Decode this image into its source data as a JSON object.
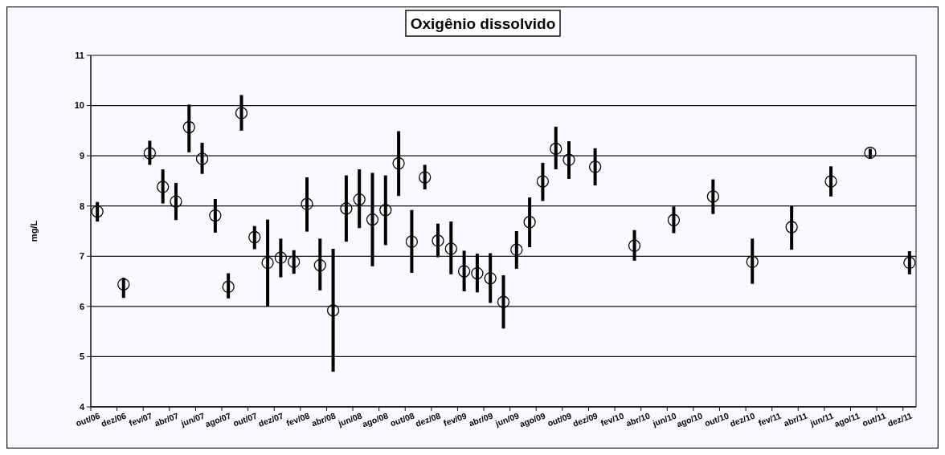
{
  "chart_data": {
    "type": "scatter",
    "title": "Oxigênio dissolvido",
    "ylabel": "mg/L",
    "categories": [
      "out/06",
      null,
      "dez/06",
      null,
      "fev/07",
      null,
      "abr/07",
      null,
      "jun/07",
      null,
      "ago/07",
      null,
      "out/07",
      null,
      "dez/07",
      null,
      "fev/08",
      null,
      "abr/08",
      null,
      "jun/08",
      null,
      "ago/08",
      null,
      "out/08",
      null,
      "dez/08",
      null,
      "fev/09",
      null,
      "abr/09",
      null,
      "jun/09",
      null,
      "ago/09",
      null,
      "out/09",
      null,
      "dez/09",
      null,
      "fev/10",
      null,
      "abr/10",
      null,
      "jun/10",
      null,
      "ago/10",
      null,
      "out/10",
      null,
      "dez/10",
      null,
      "fev/11",
      null,
      "abr/11",
      null,
      "jun/11",
      null,
      "ago/11",
      null,
      "out/11",
      null,
      "dez/11"
    ],
    "series": [
      {
        "color": "#000000",
        "values": [
          7.89,
          null,
          6.44,
          null,
          9.05,
          8.38,
          8.09,
          9.57,
          8.94,
          7.81,
          6.39,
          9.85,
          7.38,
          6.87,
          6.97,
          6.89,
          8.04,
          6.82,
          5.92,
          7.95,
          8.13,
          7.73,
          7.92,
          8.85,
          7.29,
          8.57,
          7.31,
          7.15,
          6.7,
          6.66,
          6.56,
          6.09,
          7.13,
          7.68,
          8.49,
          9.14,
          8.92,
          null,
          8.78,
          null,
          null,
          7.21,
          null,
          null,
          7.72,
          null,
          null,
          8.19,
          null,
          null,
          6.89,
          null,
          null,
          7.58,
          null,
          null,
          8.49,
          null,
          null,
          9.06,
          null,
          null,
          6.87
        ],
        "errors": [
          [
            7.69,
            8.08
          ],
          null,
          [
            6.17,
            6.57
          ],
          null,
          [
            8.82,
            9.3
          ],
          [
            8.05,
            8.73
          ],
          [
            7.72,
            8.46
          ],
          [
            9.07,
            10.02
          ],
          [
            8.64,
            9.26
          ],
          [
            7.47,
            8.14
          ],
          [
            6.16,
            6.66
          ],
          [
            9.5,
            10.21
          ],
          [
            7.14,
            7.6
          ],
          [
            6.0,
            7.73
          ],
          [
            6.58,
            7.35
          ],
          [
            6.65,
            7.12
          ],
          [
            7.49,
            8.57
          ],
          [
            6.32,
            7.35
          ],
          [
            4.7,
            7.15
          ],
          [
            7.29,
            8.61
          ],
          [
            7.56,
            8.73
          ],
          [
            6.8,
            8.66
          ],
          [
            7.22,
            8.61
          ],
          [
            8.2,
            9.49
          ],
          [
            6.67,
            7.92
          ],
          [
            8.33,
            8.82
          ],
          [
            6.98,
            7.65
          ],
          [
            6.64,
            7.69
          ],
          [
            6.3,
            7.11
          ],
          [
            6.28,
            7.05
          ],
          [
            6.07,
            7.06
          ],
          [
            5.56,
            6.62
          ],
          [
            6.75,
            7.5
          ],
          [
            7.18,
            8.17
          ],
          [
            8.1,
            8.86
          ],
          [
            8.73,
            9.58
          ],
          [
            8.54,
            9.29
          ],
          null,
          [
            8.41,
            9.15
          ],
          null,
          null,
          [
            6.91,
            7.52
          ],
          null,
          null,
          [
            7.46,
            7.99
          ],
          null,
          null,
          [
            7.84,
            8.53
          ],
          null,
          null,
          [
            6.45,
            7.35
          ],
          null,
          null,
          [
            7.13,
            8.01
          ],
          null,
          null,
          [
            8.19,
            8.79
          ],
          null,
          null,
          [
            8.95,
            9.14
          ],
          null,
          null,
          [
            6.64,
            7.1
          ]
        ]
      }
    ],
    "ylim": [
      4,
      11
    ],
    "yticks": [
      4,
      5,
      6,
      7,
      8,
      9,
      10,
      11
    ],
    "grid": "y",
    "marker": "circle"
  }
}
